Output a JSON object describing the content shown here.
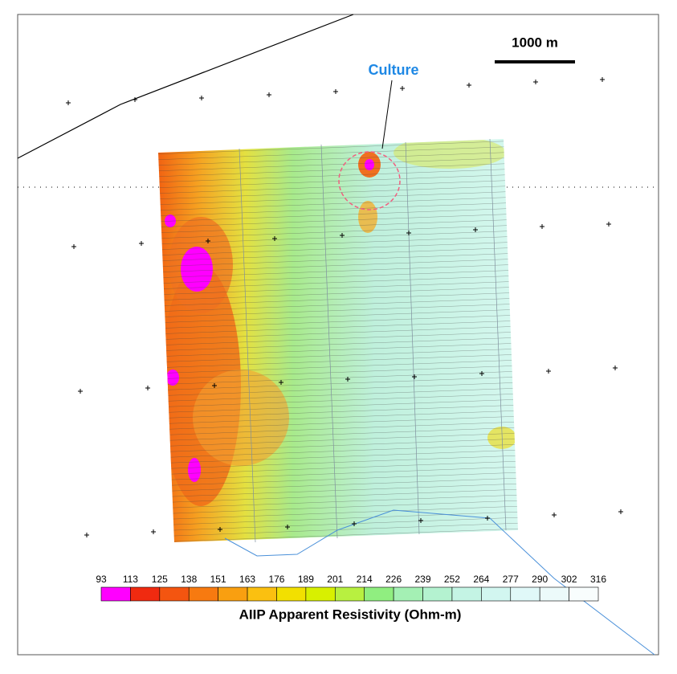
{
  "scale_bar": "1000 m",
  "annotation": "Culture",
  "legend": {
    "title": "AIIP Apparent Resistivity (Ohm-m)",
    "labels": [
      93,
      113,
      125,
      138,
      151,
      163,
      176,
      189,
      201,
      214,
      226,
      239,
      252,
      264,
      277,
      290,
      302,
      316
    ],
    "colors": [
      "#ff00ff",
      "#f02a10",
      "#f45510",
      "#f77a10",
      "#f99f10",
      "#fbc010",
      "#f2e000",
      "#d8f000",
      "#b8f040",
      "#90ee80",
      "#a4f0b4",
      "#b4f2d0",
      "#c4f4e4",
      "#d2f6f0",
      "#e0f8f8",
      "#ecfafa",
      "#f8fdfd"
    ]
  }
}
